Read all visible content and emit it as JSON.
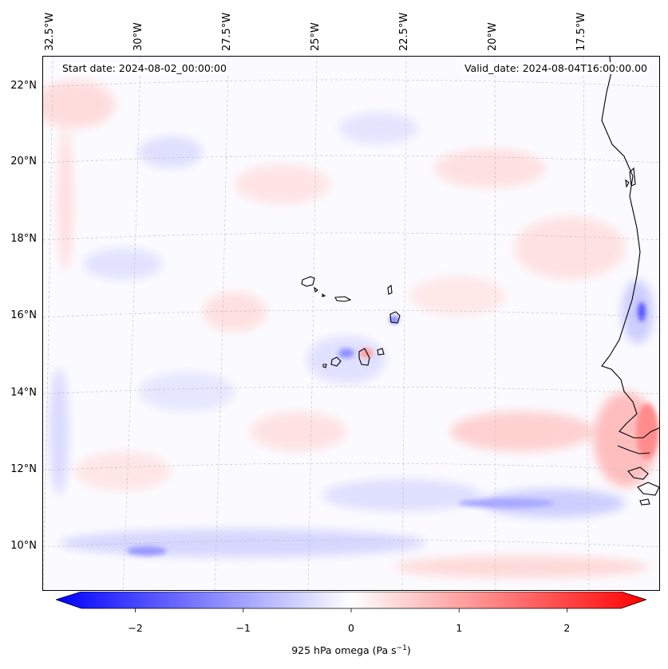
{
  "map": {
    "start_date": "Start date: 2024-08-02_00:00:00",
    "valid_date": "Valid_date: 2024-08-04T16:00:00.00",
    "lon_labels": [
      "32.5°W",
      "30°W",
      "27.5°W",
      "25°W",
      "22.5°W",
      "20°W",
      "17.5°W"
    ],
    "lat_labels": [
      "22°N",
      "20°N",
      "18°N",
      "16°N",
      "14°N",
      "12°N",
      "10°N"
    ],
    "features": [
      "Cape Verde islands",
      "West African coastline"
    ],
    "colormap": "bwr",
    "colors": {
      "negative": "#0000ff",
      "zero": "#ffffff",
      "positive": "#ff0000",
      "coast": "#000000"
    }
  },
  "colorbar": {
    "label_main": "925 hPa omega (Pa s",
    "label_exp": "−1",
    "label_tail": ")",
    "ticks": [
      "−2",
      "−1",
      "0",
      "1",
      "2"
    ],
    "tick_values": [
      -2,
      -1,
      0,
      1,
      2
    ],
    "range": [
      -2.5,
      2.5
    ],
    "extend": "both"
  }
}
